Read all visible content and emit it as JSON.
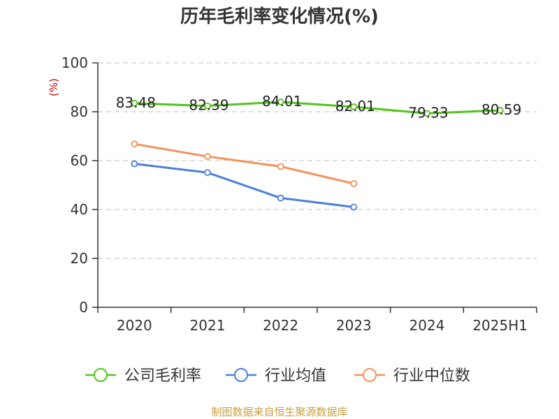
{
  "chart_data": {
    "type": "line",
    "title": "历年毛利率变化情况(%)",
    "ylabel": "(%)",
    "categories": [
      "2020",
      "2021",
      "2022",
      "2023",
      "2024",
      "2025H1"
    ],
    "ylim": [
      0,
      100
    ],
    "yticks": [
      0,
      20,
      40,
      60,
      80,
      100
    ],
    "grid": true,
    "legend_position": "bottom",
    "series": [
      {
        "name": "公司毛利率",
        "color": "#52c41a",
        "values": [
          83.48,
          82.39,
          84.01,
          82.01,
          79.33,
          80.59
        ],
        "labels": [
          "83.48",
          "82.39",
          "84.01",
          "82.01",
          "79.33",
          "80.59"
        ]
      },
      {
        "name": "行业均值",
        "color": "#4a7fdc",
        "values": [
          58.7,
          55.1,
          44.7,
          41.0,
          null,
          null
        ]
      },
      {
        "name": "行业中位数",
        "color": "#f5915a",
        "values": [
          66.8,
          61.7,
          57.6,
          50.6,
          null,
          null
        ]
      }
    ]
  },
  "footer": {
    "source": "制图数据来自恒生聚源数据库"
  }
}
